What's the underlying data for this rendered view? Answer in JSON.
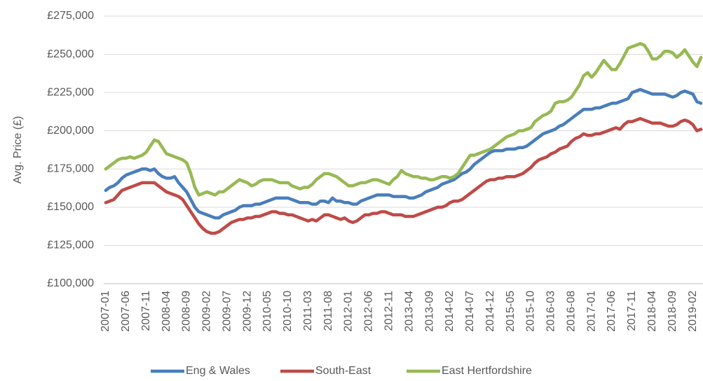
{
  "chart_data": {
    "type": "line",
    "y_label": "Avg. Price (£)",
    "ylim": [
      100000,
      275000
    ],
    "yticks": [
      {
        "value": 100000,
        "label": "£100,000"
      },
      {
        "value": 125000,
        "label": "£125,000"
      },
      {
        "value": 150000,
        "label": "£150,000"
      },
      {
        "value": 175000,
        "label": "£175,000"
      },
      {
        "value": 200000,
        "label": "£200,000"
      },
      {
        "value": 225000,
        "label": "£225,000"
      },
      {
        "value": 250000,
        "label": "£250,000"
      },
      {
        "value": 275000,
        "label": "£275,000"
      }
    ],
    "grid": true,
    "legend": "bottom",
    "categories": [
      "2007-01",
      null,
      null,
      null,
      null,
      "2007-06",
      null,
      null,
      null,
      null,
      "2007-11",
      null,
      null,
      null,
      null,
      "2008-04",
      null,
      null,
      null,
      null,
      "2008-09",
      null,
      null,
      null,
      null,
      "2009-02",
      null,
      null,
      null,
      null,
      "2009-07",
      null,
      null,
      null,
      null,
      "2009-12",
      null,
      null,
      null,
      null,
      "2010-05",
      null,
      null,
      null,
      null,
      "2010-10",
      null,
      null,
      null,
      null,
      "2011-03",
      null,
      null,
      null,
      null,
      "2011-08",
      null,
      null,
      null,
      null,
      "2012-01",
      null,
      null,
      null,
      null,
      "2012-06",
      null,
      null,
      null,
      null,
      "2012-11",
      null,
      null,
      null,
      null,
      "2013-04",
      null,
      null,
      null,
      null,
      "2013-09",
      null,
      null,
      null,
      null,
      "2014-02",
      null,
      null,
      null,
      null,
      "2014-07",
      null,
      null,
      null,
      null,
      "2014-12",
      null,
      null,
      null,
      null,
      "2015-05",
      null,
      null,
      null,
      null,
      "2015-10",
      null,
      null,
      null,
      null,
      "2016-03",
      null,
      null,
      null,
      null,
      "2016-08",
      null,
      null,
      null,
      null,
      "2017-01",
      null,
      null,
      null,
      null,
      "2017-06",
      null,
      null,
      null,
      null,
      "2017-11",
      null,
      null,
      null,
      null,
      "2018-04",
      null,
      null,
      null,
      null,
      "2018-09",
      null,
      null,
      null,
      null,
      "2019-02",
      null,
      null
    ],
    "series": [
      {
        "name": "Eng & Wales",
        "color": "#4a7ebb",
        "values": [
          161000,
          163000,
          164000,
          166000,
          169000,
          171000,
          172000,
          173000,
          174000,
          175000,
          175000,
          174000,
          175000,
          172000,
          170000,
          169000,
          169000,
          170000,
          166000,
          163000,
          160000,
          155000,
          150000,
          147000,
          146000,
          145000,
          144000,
          143000,
          143000,
          145000,
          146000,
          147000,
          148000,
          150000,
          151000,
          151000,
          151000,
          152000,
          152000,
          153000,
          154000,
          155000,
          156000,
          156000,
          156000,
          156000,
          155000,
          154000,
          153000,
          153000,
          153000,
          152000,
          152000,
          154000,
          154000,
          153000,
          156000,
          154000,
          154000,
          153000,
          153000,
          152000,
          152000,
          154000,
          155000,
          156000,
          157000,
          158000,
          158000,
          158000,
          158000,
          157000,
          157000,
          157000,
          157000,
          156000,
          156000,
          157000,
          158000,
          160000,
          161000,
          162000,
          163000,
          165000,
          166000,
          167000,
          168000,
          170000,
          172000,
          173000,
          175000,
          178000,
          180000,
          182000,
          184000,
          186000,
          187000,
          187000,
          187000,
          188000,
          188000,
          188000,
          189000,
          189000,
          190000,
          192000,
          194000,
          196000,
          198000,
          199000,
          200000,
          201000,
          203000,
          204000,
          206000,
          208000,
          210000,
          212000,
          214000,
          214000,
          214000,
          215000,
          215000,
          216000,
          217000,
          218000,
          218000,
          219000,
          220000,
          221000,
          225000,
          226000,
          227000,
          226000,
          225000,
          224000,
          224000,
          224000,
          224000,
          223000,
          222000,
          223000,
          225000,
          226000,
          225000,
          224000,
          219000,
          218000
        ]
      },
      {
        "name": "South-East",
        "color": "#be4b48",
        "values": [
          153000,
          154000,
          155000,
          158000,
          161000,
          162000,
          163000,
          164000,
          165000,
          166000,
          166000,
          166000,
          166000,
          164000,
          162000,
          160000,
          159000,
          158000,
          157000,
          155000,
          151000,
          147000,
          143000,
          139000,
          136000,
          134000,
          133000,
          133000,
          134000,
          136000,
          138000,
          140000,
          141000,
          142000,
          142000,
          143000,
          143000,
          144000,
          144000,
          145000,
          146000,
          147000,
          147000,
          146000,
          146000,
          145000,
          145000,
          144000,
          143000,
          142000,
          141000,
          142000,
          141000,
          143000,
          145000,
          145000,
          144000,
          143000,
          142000,
          143000,
          141000,
          140000,
          141000,
          143000,
          145000,
          145000,
          146000,
          146000,
          147000,
          147000,
          146000,
          145000,
          145000,
          145000,
          144000,
          144000,
          144000,
          145000,
          146000,
          147000,
          148000,
          149000,
          150000,
          150000,
          151000,
          153000,
          154000,
          154000,
          155000,
          157000,
          159000,
          161000,
          163000,
          165000,
          167000,
          168000,
          168000,
          169000,
          169000,
          170000,
          170000,
          170000,
          171000,
          172000,
          174000,
          176000,
          179000,
          181000,
          182000,
          183000,
          185000,
          186000,
          188000,
          189000,
          190000,
          193000,
          195000,
          196000,
          198000,
          197000,
          197000,
          198000,
          198000,
          199000,
          200000,
          201000,
          202000,
          201000,
          204000,
          206000,
          206000,
          207000,
          208000,
          207000,
          206000,
          205000,
          205000,
          205000,
          204000,
          203000,
          203000,
          204000,
          206000,
          207000,
          206000,
          204000,
          200000,
          201000
        ]
      },
      {
        "name": "East Hertfordshire",
        "color": "#98b954",
        "values": [
          175000,
          177000,
          179000,
          181000,
          182000,
          182000,
          183000,
          182000,
          183000,
          184000,
          186000,
          190000,
          194000,
          193000,
          189000,
          185000,
          184000,
          183000,
          182000,
          181000,
          179000,
          172000,
          163000,
          158000,
          159000,
          160000,
          159000,
          158000,
          160000,
          160000,
          162000,
          164000,
          166000,
          168000,
          167000,
          166000,
          164000,
          165000,
          167000,
          168000,
          168000,
          168000,
          167000,
          166000,
          166000,
          166000,
          164000,
          163000,
          162000,
          163000,
          163000,
          165000,
          168000,
          170000,
          172000,
          172000,
          171000,
          170000,
          168000,
          166000,
          164000,
          164000,
          165000,
          166000,
          166000,
          167000,
          168000,
          168000,
          167000,
          166000,
          165000,
          168000,
          170000,
          174000,
          172000,
          171000,
          170000,
          170000,
          169000,
          169000,
          168000,
          168000,
          169000,
          170000,
          170000,
          169000,
          170000,
          172000,
          176000,
          180000,
          184000,
          184000,
          185000,
          186000,
          187000,
          188000,
          190000,
          192000,
          194000,
          196000,
          197000,
          198000,
          200000,
          200000,
          201000,
          202000,
          206000,
          208000,
          210000,
          211000,
          213000,
          218000,
          219000,
          219000,
          220000,
          222000,
          226000,
          230000,
          236000,
          238000,
          235000,
          238000,
          242000,
          246000,
          243000,
          240000,
          240000,
          244000,
          249000,
          254000,
          255000,
          256000,
          257000,
          256000,
          252000,
          247000,
          247000,
          249000,
          252000,
          252000,
          251000,
          248000,
          250000,
          253000,
          249000,
          245000,
          242000,
          248000
        ]
      }
    ]
  }
}
